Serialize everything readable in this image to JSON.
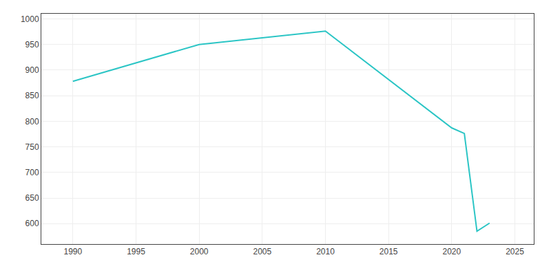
{
  "chart_data": {
    "type": "line",
    "x": [
      1990,
      2000,
      2005,
      2010,
      2020,
      2021,
      2022,
      2023
    ],
    "values": [
      878,
      950,
      963,
      976,
      787,
      776,
      585,
      601
    ],
    "color": "#2BC5C5",
    "xlim": [
      1987.5,
      2026.5
    ],
    "ylim": [
      560,
      1010
    ],
    "xticks": [
      1990,
      1995,
      2000,
      2005,
      2010,
      2015,
      2020,
      2025
    ],
    "yticks": [
      600,
      650,
      700,
      750,
      800,
      850,
      900,
      950,
      1000
    ],
    "grid": true
  }
}
